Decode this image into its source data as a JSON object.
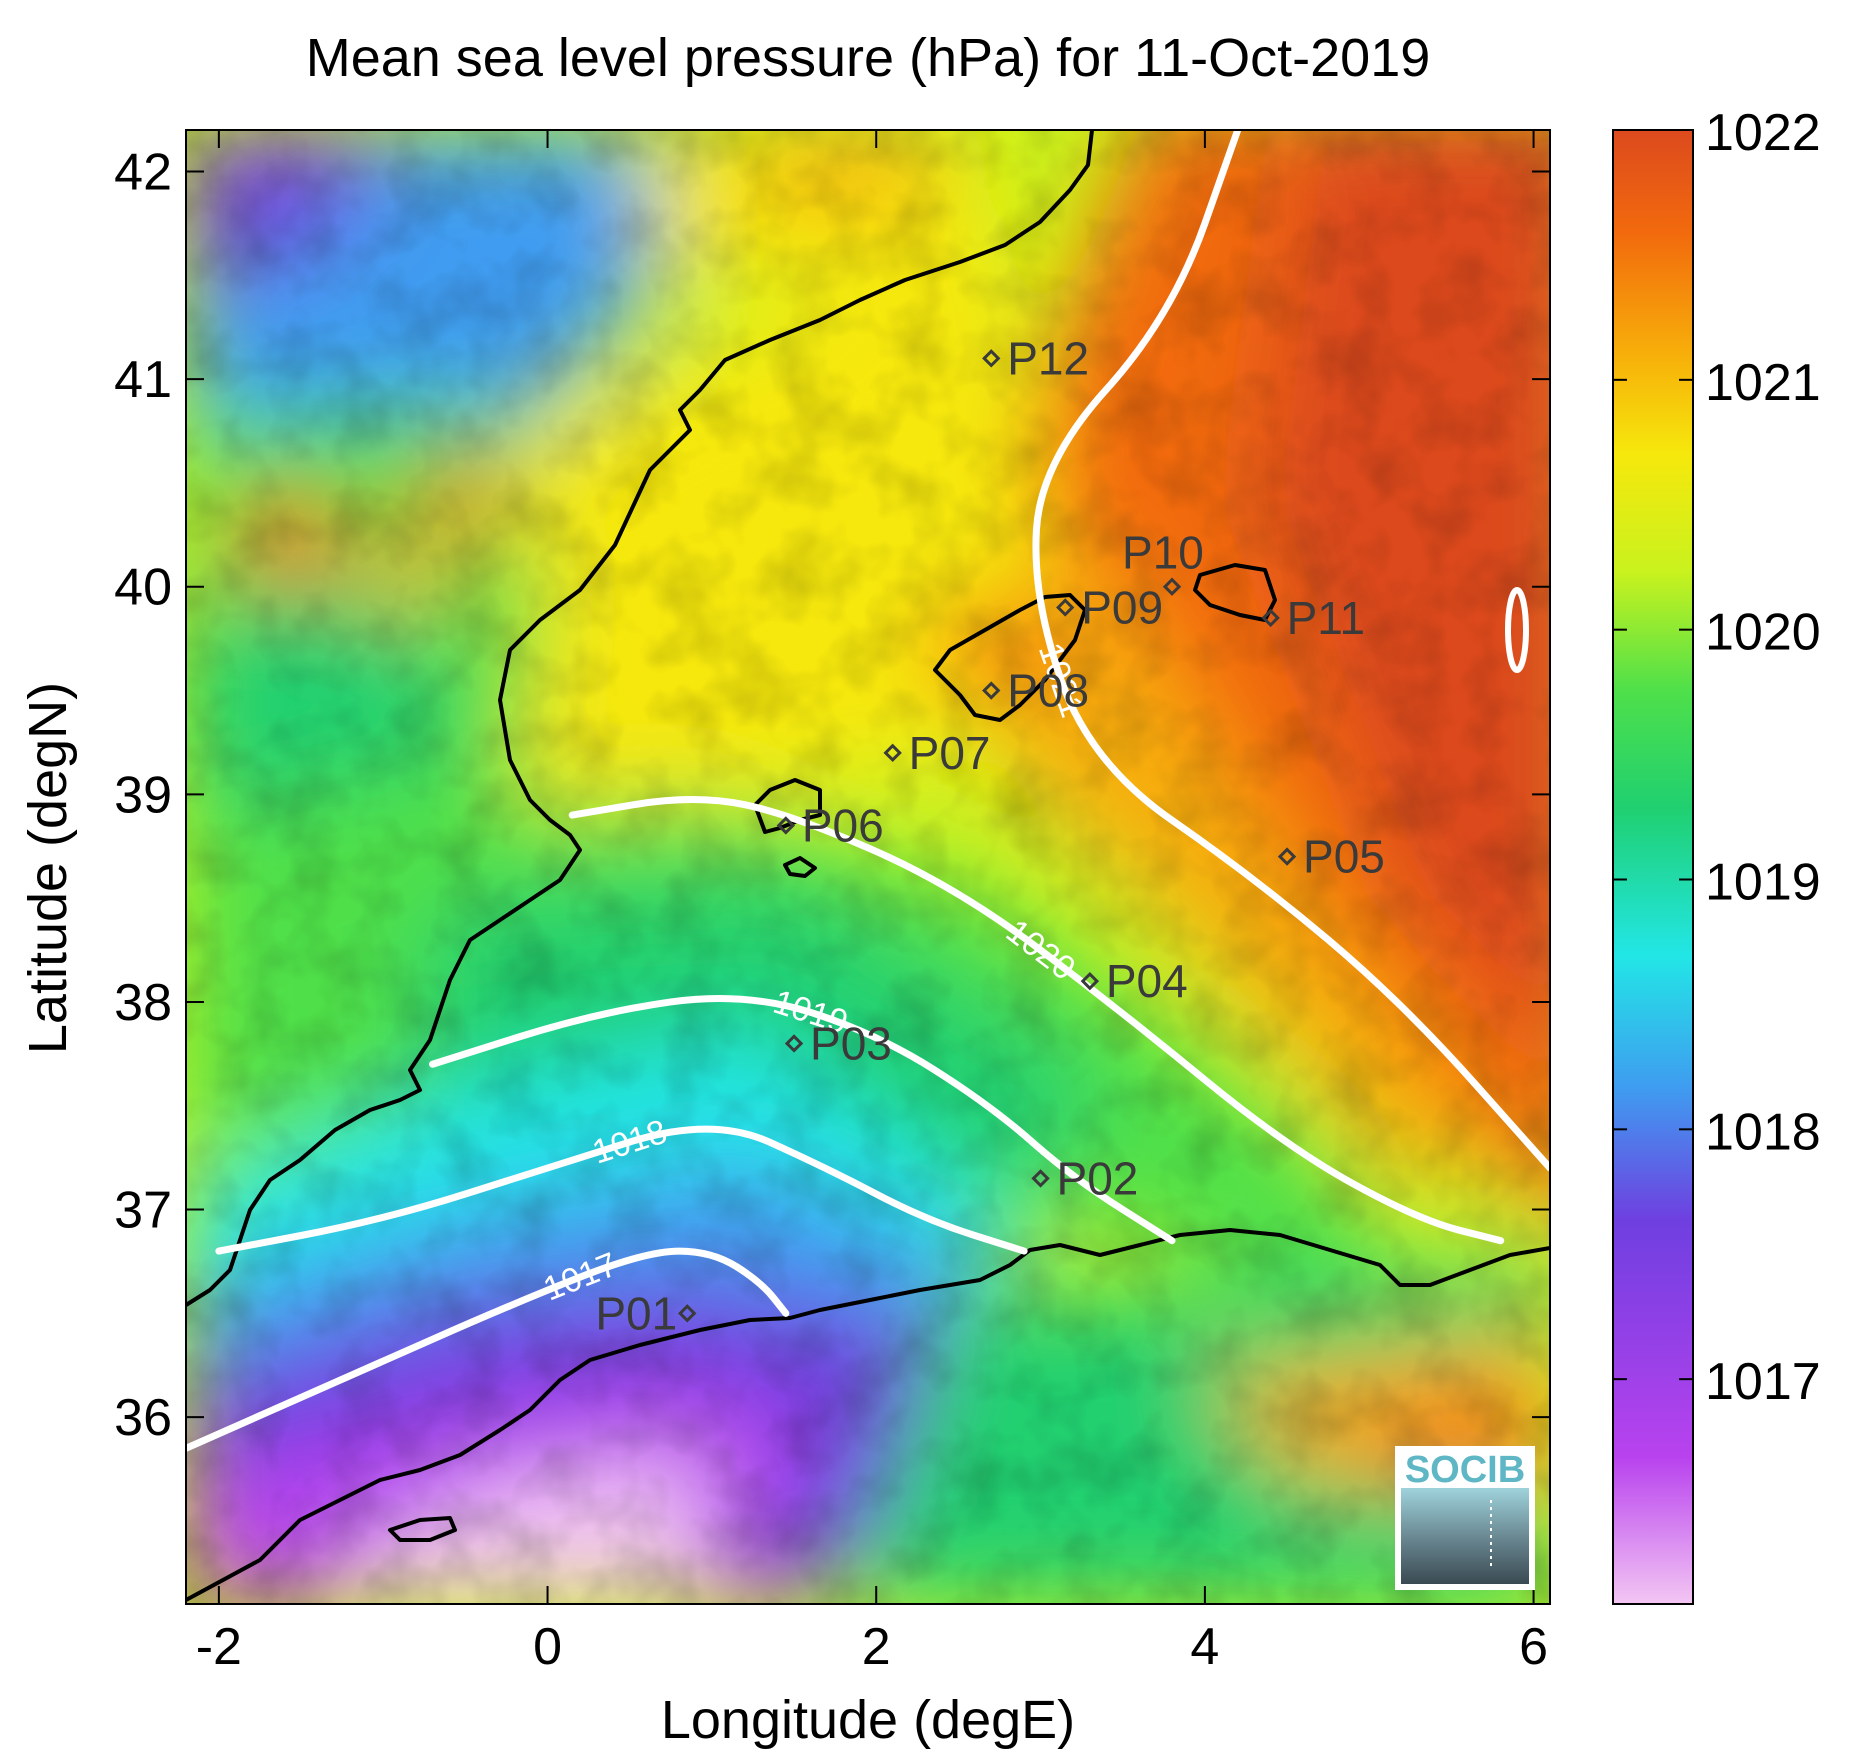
{
  "title": "Mean sea level pressure (hPa) for 11-Oct-2019",
  "xlabel": "Longitude (degE)",
  "ylabel": "Latitude (degN)",
  "logo_text": "SOCIB",
  "colors": {
    "contour": "#ffffff",
    "coast": "#000000",
    "marker": "#3a3a3a",
    "colormap": [
      "#f3c6f3",
      "#b842ee",
      "#6f3fe0",
      "#3f9cf0",
      "#22e6e6",
      "#20d070",
      "#4fe04a",
      "#c9f21e",
      "#f6e80c",
      "#f7ad0a",
      "#f26a0d",
      "#dc4a1e"
    ]
  },
  "chart_data": {
    "type": "heatmap",
    "variable": "Mean sea level pressure",
    "units": "hPa",
    "date": "11-Oct-2019",
    "xlim": [
      -2.2,
      6.1
    ],
    "ylim": [
      35.1,
      42.2
    ],
    "xticks": [
      -2,
      0,
      2,
      4,
      6
    ],
    "yticks": [
      36,
      37,
      38,
      39,
      40,
      41,
      42
    ],
    "colorbar": {
      "range": [
        1016.1,
        1022
      ],
      "ticks": [
        1017,
        1018,
        1019,
        1020,
        1021,
        1022
      ]
    },
    "contours": [
      {
        "level": "1017",
        "lon": [
          -2.2,
          -1.2,
          -0.2,
          0.6,
          1.0,
          1.3,
          1.45
        ],
        "lat": [
          35.85,
          36.2,
          36.55,
          36.8,
          36.8,
          36.65,
          36.5
        ]
      },
      {
        "level": "1018",
        "lon": [
          -2.0,
          -1.0,
          0.0,
          1.0,
          1.7,
          2.3,
          2.9
        ],
        "lat": [
          36.8,
          36.95,
          37.2,
          37.45,
          37.2,
          36.95,
          36.8
        ]
      },
      {
        "level": "1019",
        "lon": [
          -0.7,
          0.3,
          1.2,
          2.0,
          2.7,
          3.2,
          3.8
        ],
        "lat": [
          37.7,
          37.95,
          38.05,
          37.85,
          37.5,
          37.15,
          36.85
        ]
      },
      {
        "level": "1020",
        "lon": [
          0.15,
          0.9,
          1.5,
          2.5,
          3.5,
          4.5,
          5.3,
          5.8
        ],
        "lat": [
          38.9,
          39.0,
          38.9,
          38.55,
          37.95,
          37.3,
          36.95,
          36.85
        ]
      },
      {
        "level": "1021",
        "lon": [
          4.2,
          3.8,
          3.0,
          2.95,
          3.3,
          4.3,
          5.2,
          6.1
        ],
        "lat": [
          42.2,
          41.3,
          40.6,
          39.95,
          39.15,
          38.6,
          38.0,
          37.2
        ]
      }
    ],
    "points": [
      {
        "name": "P01",
        "lon": 0.85,
        "lat": 36.5
      },
      {
        "name": "P02",
        "lon": 3.0,
        "lat": 37.15
      },
      {
        "name": "P03",
        "lon": 1.5,
        "lat": 37.8
      },
      {
        "name": "P04",
        "lon": 3.3,
        "lat": 38.1
      },
      {
        "name": "P05",
        "lon": 4.5,
        "lat": 38.7
      },
      {
        "name": "P06",
        "lon": 1.45,
        "lat": 38.85
      },
      {
        "name": "P07",
        "lon": 2.1,
        "lat": 39.2
      },
      {
        "name": "P08",
        "lon": 2.7,
        "lat": 39.5
      },
      {
        "name": "P09",
        "lon": 3.15,
        "lat": 39.9
      },
      {
        "name": "P10",
        "lon": 3.8,
        "lat": 40.0
      },
      {
        "name": "P11",
        "lon": 4.4,
        "lat": 39.85
      },
      {
        "name": "P12",
        "lon": 2.7,
        "lat": 41.1
      }
    ]
  }
}
